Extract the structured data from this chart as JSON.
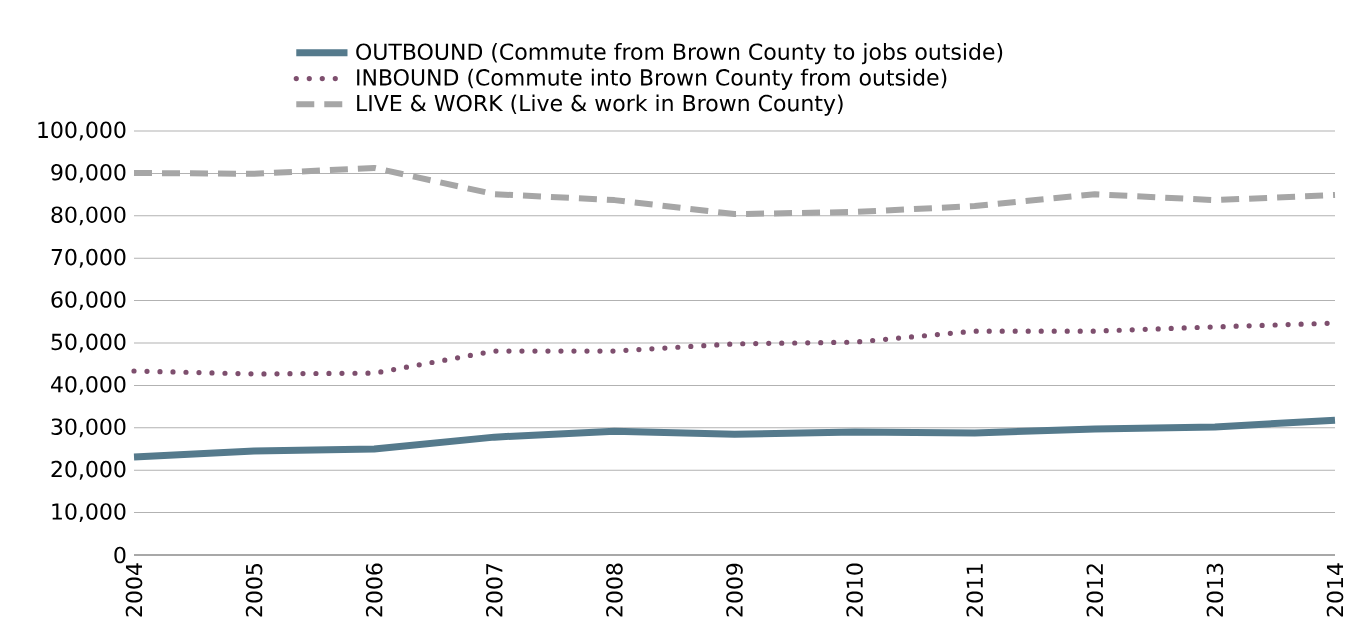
{
  "chart_data": {
    "type": "line",
    "categories": [
      "2004",
      "2005",
      "2006",
      "2007",
      "2008",
      "2009",
      "2010",
      "2011",
      "2012",
      "2013",
      "2014"
    ],
    "series": [
      {
        "name": "OUTBOUND (Commute from Brown County to jobs outside)",
        "color": "#557a8c",
        "line_style": "solid",
        "values": [
          23100,
          24500,
          25000,
          27800,
          29200,
          28500,
          29000,
          28800,
          29700,
          30200,
          31800
        ]
      },
      {
        "name": "INBOUND (Commute into Brown County from outside)",
        "color": "#7e4f6e",
        "line_style": "dotted",
        "values": [
          43400,
          42700,
          42900,
          48100,
          48100,
          49800,
          50200,
          52800,
          52800,
          53800,
          54700
        ]
      },
      {
        "name": "LIVE & WORK (Live & work in Brown County)",
        "color": "#a6a6a6",
        "line_style": "dashed",
        "values": [
          90100,
          89900,
          91300,
          85100,
          83700,
          80400,
          80900,
          82300,
          85100,
          83700,
          84900
        ]
      }
    ],
    "ylim": [
      0,
      100000
    ],
    "yticks": [
      {
        "value": 0,
        "label": "0"
      },
      {
        "value": 10000,
        "label": "10,000"
      },
      {
        "value": 20000,
        "label": "20,000"
      },
      {
        "value": 30000,
        "label": "30,000"
      },
      {
        "value": 40000,
        "label": "40,000"
      },
      {
        "value": 50000,
        "label": "50,000"
      },
      {
        "value": 60000,
        "label": "60,000"
      },
      {
        "value": 70000,
        "label": "70,000"
      },
      {
        "value": 80000,
        "label": "80,000"
      },
      {
        "value": 90000,
        "label": "90,000"
      },
      {
        "value": 100000,
        "label": "100,000"
      }
    ],
    "grid": "y",
    "legend": "top"
  }
}
